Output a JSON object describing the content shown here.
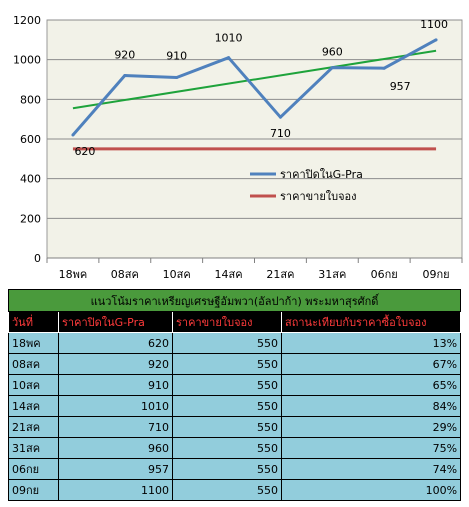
{
  "chart_data": {
    "type": "line",
    "categories": [
      "18พค",
      "08สค",
      "10สค",
      "14สค",
      "21สค",
      "31สค",
      "06กย",
      "09กย"
    ],
    "series": [
      {
        "name": "ราคาปิดในG-Pra",
        "values": [
          620,
          920,
          910,
          1010,
          710,
          960,
          957,
          1100
        ],
        "color": "#4f81bd"
      },
      {
        "name": "ราคาขายใบจอง",
        "values": [
          550,
          550,
          550,
          550,
          550,
          550,
          550,
          550
        ],
        "color": "#c0504d"
      }
    ],
    "trendline": {
      "start": 755,
      "end": 1045,
      "color": "#1ea33b"
    },
    "data_labels": [
      "620",
      "920",
      "910",
      "1010",
      "710",
      "960",
      "957",
      "1100"
    ],
    "ylim": [
      0,
      1200
    ],
    "yticks": [
      "0",
      "200",
      "400",
      "600",
      "800",
      "1000",
      "1200"
    ],
    "grid": true,
    "plot_background": "#f2f2e8",
    "legend_position": "right"
  },
  "table": {
    "title": "แนวโน้มราคาเหรียญเศรษฐีอัมพวา(อัลปาก้า) พระมหาสุรศักดิ์",
    "headers": [
      "วันที่",
      "ราคาปิดในG-Pra",
      "ราคาขายใบจอง",
      "สถานะเทียบกับราคาซื้อใบจอง"
    ],
    "rows": [
      [
        "18พค",
        "620",
        "550",
        "13%"
      ],
      [
        "08สค",
        "920",
        "550",
        "67%"
      ],
      [
        "10สค",
        "910",
        "550",
        "65%"
      ],
      [
        "14สค",
        "1010",
        "550",
        "84%"
      ],
      [
        "21สค",
        "710",
        "550",
        "29%"
      ],
      [
        "31สค",
        "960",
        "550",
        "75%"
      ],
      [
        "06กย",
        "957",
        "550",
        "74%"
      ],
      [
        "09กย",
        "1100",
        "550",
        "100%"
      ]
    ],
    "colors": {
      "title_bg": "#4a9a3c",
      "header_bg": "#000000",
      "header_text": "#ff3b3b",
      "row_bg": "#92cddc"
    }
  }
}
